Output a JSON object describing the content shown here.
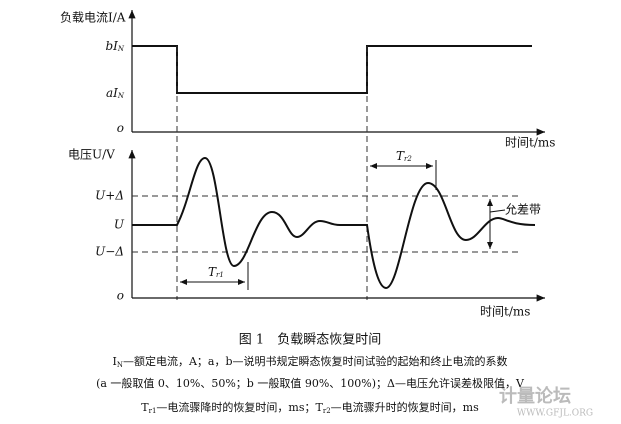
{
  "figure": {
    "top_axis_label": "负载电流I/A",
    "top_ticks": [
      {
        "main": "bI",
        "sub": "N"
      },
      {
        "main": "aI",
        "sub": "N"
      },
      {
        "main": "o"
      }
    ],
    "top_time_label": "时间t/ms",
    "bottom_axis_label": "电压U/V",
    "bottom_ticks": [
      "U+Δ",
      "U",
      "U−Δ",
      "o"
    ],
    "bottom_time_label": "时间t/ms",
    "tr1": {
      "main": "T",
      "sub": "r1"
    },
    "tr2": {
      "main": "T",
      "sub": "r2"
    },
    "band_label": "允差带",
    "caption": "图 1　负载瞬态恢复时间",
    "notes": [
      [
        {
          "text": "I"
        },
        {
          "text": "N",
          "sub": true
        },
        {
          "text": "—额定电流，A；a，b—说明书规定瞬态恢复时间试验的起始和终止电流的系数"
        }
      ],
      [
        {
          "text": "(a 一般取值 0、10%、50%；b 一般取值 90%、100%)；Δ—电压允许误差极限值，V"
        }
      ],
      [
        {
          "text": "T"
        },
        {
          "text": "r1",
          "sub": true
        },
        {
          "text": "—电流骤降时的恢复时间，ms；T"
        },
        {
          "text": "r2",
          "sub": true
        },
        {
          "text": "—电流骤升时的恢复时间，ms"
        }
      ]
    ]
  },
  "watermark": {
    "title": "计量论坛",
    "url": "WWW.GFJL.ORG"
  }
}
